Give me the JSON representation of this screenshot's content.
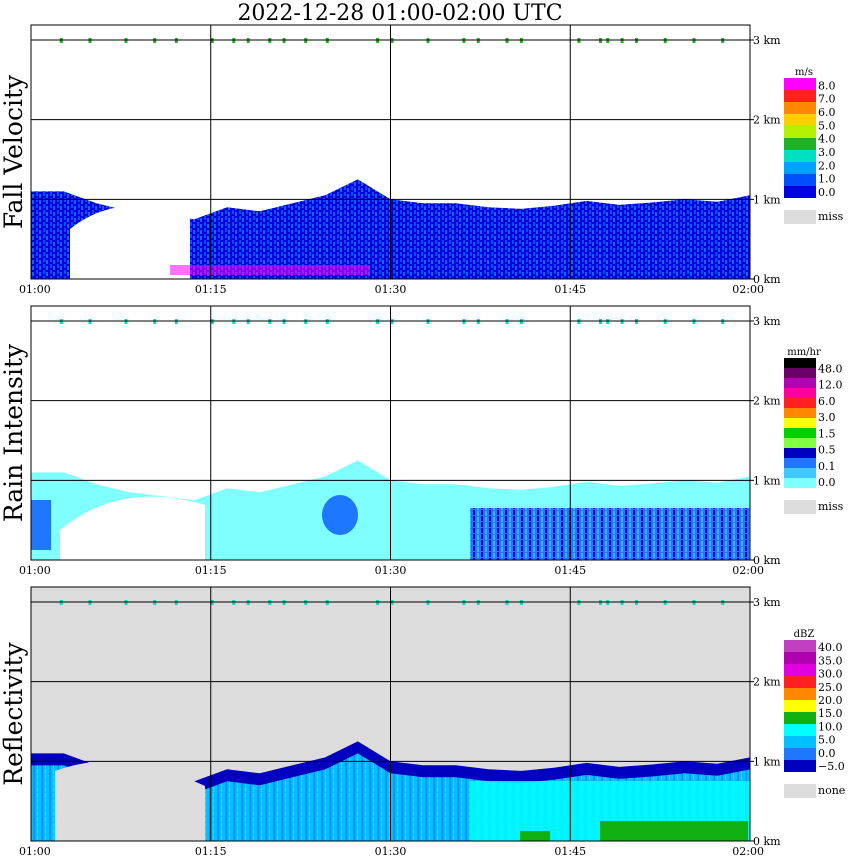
{
  "title": "2022-12-28   01:00-02:00 UTC",
  "chart_data": [
    {
      "type": "heatmap",
      "panel": "fall-velocity",
      "ylabel": "Fall Velocity",
      "x_ticks": [
        "01:00",
        "01:15",
        "01:30",
        "01:45",
        "02:00"
      ],
      "y_ticks": [
        "0 km",
        "1 km",
        "2 km",
        "3 km"
      ],
      "xlim": [
        "01:00",
        "02:00"
      ],
      "ylim_km": [
        0,
        3.1
      ],
      "grid": true,
      "colorbar": {
        "unit": "m/s",
        "levels": [
          "8.0",
          "7.0",
          "6.0",
          "5.0",
          "4.0",
          "3.0",
          "2.0",
          "1.0",
          "0.0"
        ],
        "colors": [
          "#ff00ff",
          "#ff2020",
          "#ff8800",
          "#ffd000",
          "#b4f000",
          "#22b022",
          "#00e0c0",
          "#00a0ff",
          "#0050ff",
          "#0000e0"
        ],
        "miss_label": "miss",
        "miss_color": "#dcdcdc"
      },
      "echo_top_km": [
        1.1,
        1.1,
        0.95,
        0.85,
        0.8,
        0.75,
        0.9,
        0.85,
        0.95,
        1.05,
        1.25,
        1.0,
        0.95,
        0.95,
        0.9,
        0.88,
        0.92,
        0.98,
        0.93,
        0.96,
        1.0,
        0.97,
        1.05
      ]
    },
    {
      "type": "heatmap",
      "panel": "rain-intensity",
      "ylabel": "Rain Intensity",
      "x_ticks": [
        "01:00",
        "01:15",
        "01:30",
        "01:45",
        "02:00"
      ],
      "y_ticks": [
        "0 km",
        "1 km",
        "2 km",
        "3 km"
      ],
      "xlim": [
        "01:00",
        "02:00"
      ],
      "ylim_km": [
        0,
        3.1
      ],
      "grid": true,
      "colorbar": {
        "unit": "mm/hr",
        "levels": [
          "48.0",
          "12.0",
          "6.0",
          "3.0",
          "1.5",
          "0.5",
          "0.1",
          "0.0"
        ],
        "colors": [
          "#000000",
          "#6a006a",
          "#b400b4",
          "#ff00a0",
          "#ff2020",
          "#ff8800",
          "#ffff00",
          "#00d000",
          "#80ff40",
          "#0000c0",
          "#1e78ff",
          "#40c8ff",
          "#80ffff"
        ],
        "miss_label": "miss",
        "miss_color": "#dcdcdc"
      },
      "echo_top_km": [
        1.1,
        1.1,
        0.95,
        0.85,
        0.8,
        0.75,
        0.9,
        0.85,
        0.95,
        1.05,
        1.25,
        1.0,
        0.95,
        0.95,
        0.9,
        0.88,
        0.92,
        0.98,
        0.93,
        0.96,
        1.0,
        0.97,
        1.05
      ]
    },
    {
      "type": "heatmap",
      "panel": "reflectivity",
      "ylabel": "Reflectivity",
      "x_ticks": [
        "01:00",
        "01:15",
        "01:30",
        "01:45",
        "02:00"
      ],
      "y_ticks": [
        "0 km",
        "1 km",
        "2 km",
        "3 km"
      ],
      "xlim": [
        "01:00",
        "02:00"
      ],
      "ylim_km": [
        0,
        3.1
      ],
      "grid": true,
      "colorbar": {
        "unit": "dBZ",
        "levels": [
          "40.0",
          "35.0",
          "30.0",
          "25.0",
          "20.0",
          "15.0",
          "10.0",
          "5.0",
          "0.0",
          "−5.0"
        ],
        "colors": [
          "#c040c0",
          "#b000b0",
          "#e000e0",
          "#ff2020",
          "#ff8800",
          "#ffff00",
          "#10b010",
          "#00ffff",
          "#00c0ff",
          "#1e78ff",
          "#0000c0"
        ],
        "miss_label": "none",
        "miss_color": "#dcdcdc"
      },
      "echo_top_km": [
        1.1,
        1.1,
        0.95,
        0.85,
        0.8,
        0.75,
        0.9,
        0.85,
        0.95,
        1.05,
        1.25,
        1.0,
        0.95,
        0.95,
        0.9,
        0.88,
        0.92,
        0.98,
        0.93,
        0.96,
        1.0,
        0.97,
        1.05
      ]
    }
  ]
}
